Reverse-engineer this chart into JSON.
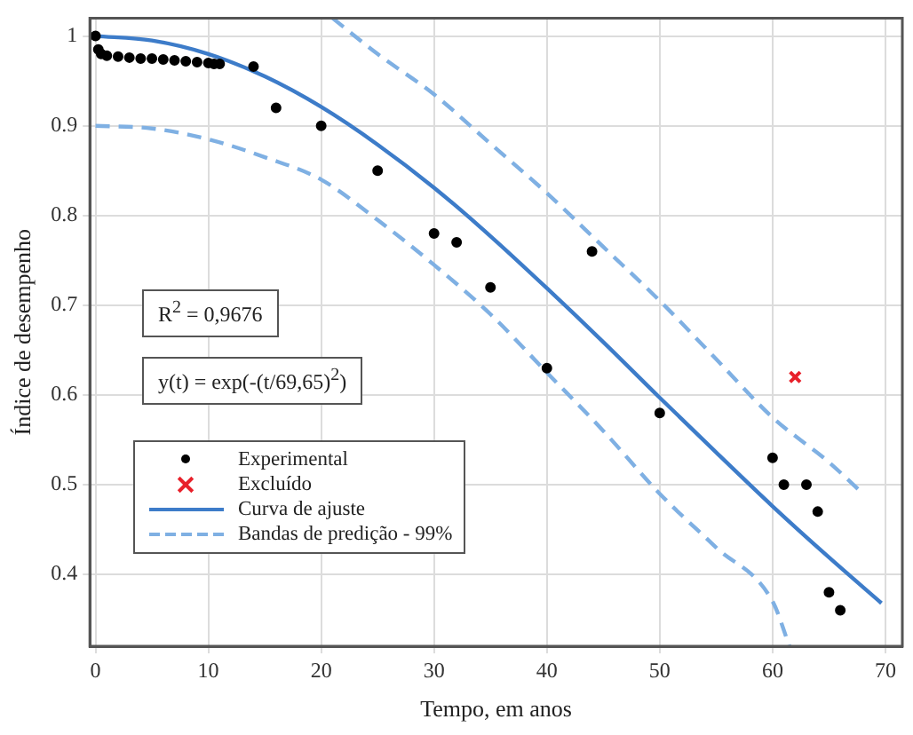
{
  "chart_data": {
    "type": "scatter",
    "xlabel": "Tempo, em anos",
    "ylabel": "Índice de desempenho",
    "xlim": [
      -0.5,
      71.5
    ],
    "xticks": [
      0,
      10,
      20,
      30,
      40,
      50,
      60,
      70
    ],
    "ylim": [
      0.32,
      1.02
    ],
    "yticks": [
      0.4,
      0.5,
      0.6,
      0.7,
      0.8,
      0.9,
      1
    ],
    "grid": true,
    "legend": "bottom left",
    "annotations": [
      "R$^{2}$ = 0,9676",
      "y(t) = exp(-(t/69,65)$^{2}$)"
    ],
    "series": [
      {
        "name": "Experimental",
        "type": "scatter",
        "marker": "circle",
        "color": "#000000",
        "x": [
          0,
          0.25,
          0.5,
          1,
          2,
          3,
          4,
          5,
          6,
          7,
          8,
          9,
          10,
          10.5,
          11,
          14,
          16,
          20,
          25,
          30,
          32,
          35,
          40,
          44,
          50,
          60,
          61,
          63,
          64,
          65,
          66
        ],
        "values": [
          1.0,
          0.985,
          0.98,
          0.978,
          0.977,
          0.976,
          0.975,
          0.975,
          0.974,
          0.973,
          0.972,
          0.971,
          0.97,
          0.969,
          0.969,
          0.966,
          0.92,
          0.9,
          0.85,
          0.78,
          0.77,
          0.72,
          0.63,
          0.76,
          0.58,
          0.53,
          0.5,
          0.5,
          0.47,
          0.38,
          0.36
        ]
      },
      {
        "name": "Excluído",
        "type": "scatter",
        "marker": "cross",
        "color": "#e8202a",
        "x": [
          62
        ],
        "values": [
          0.62
        ]
      },
      {
        "name": "Curva de ajuste",
        "type": "line",
        "marker": "none",
        "line_style": "solid",
        "color": "#3d7cc9",
        "x": [
          0,
          5,
          10,
          15,
          20,
          25,
          30,
          35,
          40,
          45,
          50,
          55,
          60,
          65,
          69.65
        ],
        "values": [
          1.0,
          0.995,
          0.98,
          0.955,
          0.921,
          0.879,
          0.831,
          0.777,
          0.719,
          0.659,
          0.597,
          0.536,
          0.476,
          0.419,
          0.368
        ]
      },
      {
        "name": "Bandas de predição - 99%",
        "type": "line",
        "marker": "none",
        "line_style": "dashed",
        "color": "#7fb0e3",
        "x": [
          21,
          25,
          30,
          35,
          40,
          45,
          50,
          55,
          60,
          65,
          68
        ],
        "values": [
          1.02,
          0.98,
          0.935,
          0.88,
          0.825,
          0.765,
          0.705,
          0.64,
          0.575,
          0.525,
          0.49
        ]
      },
      {
        "type": "line",
        "marker": "none",
        "line_style": "dashed",
        "color": "#7fb0e3",
        "x": [
          0,
          5,
          10,
          15,
          20,
          25,
          30,
          35,
          40,
          45,
          50,
          55,
          60,
          61.5
        ],
        "values": [
          0.9,
          0.897,
          0.885,
          0.865,
          0.84,
          0.795,
          0.745,
          0.69,
          0.625,
          0.56,
          0.49,
          0.43,
          0.37,
          0.32
        ]
      }
    ]
  }
}
